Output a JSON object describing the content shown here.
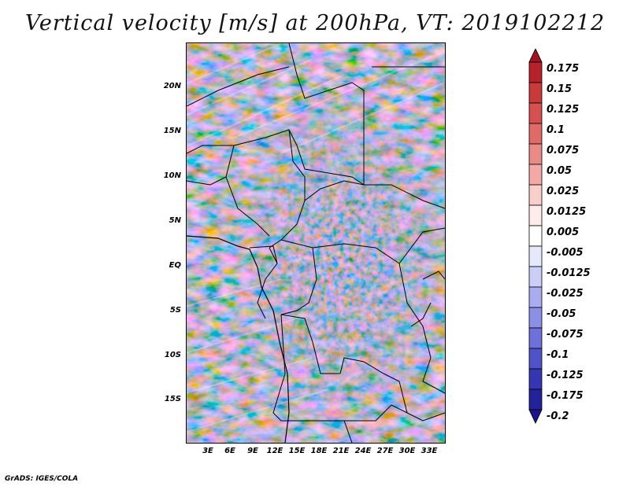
{
  "title": "Vertical velocity [m/s] at 200hPa, VT: 2019102212",
  "credit": "GrADS: IGES/COLA",
  "latitude_labels": [
    "20N",
    "15N",
    "10N",
    "5N",
    "EQ",
    "5S",
    "10S",
    "15S"
  ],
  "longitude_labels": [
    "3E",
    "6E",
    "9E",
    "12E",
    "15E",
    "18E",
    "21E",
    "24E",
    "27E",
    "30E",
    "33E"
  ],
  "colorbar": {
    "levels": [
      "0.175",
      "0.15",
      "0.125",
      "0.1",
      "0.075",
      "0.05",
      "0.025",
      "0.0125",
      "0.005",
      "-0.005",
      "-0.0125",
      "-0.025",
      "-0.05",
      "-0.075",
      "-0.1",
      "-0.125",
      "-0.175",
      "-0.2"
    ],
    "colors": [
      "#a0141e",
      "#b8222a",
      "#c93a3a",
      "#d65050",
      "#e06a66",
      "#ea8a86",
      "#f3aaa6",
      "#f9cfcc",
      "#fdeceb",
      "#ffffff",
      "#e6e8fb",
      "#cbcff5",
      "#a9adef",
      "#8b8fe6",
      "#6e71d9",
      "#5052c8",
      "#3537b2",
      "#24229a",
      "#1a1488"
    ]
  },
  "colors": {
    "positive": "#d65050",
    "negative": "#6e71d9",
    "neutral": "#ffffff",
    "border": "#000000"
  }
}
